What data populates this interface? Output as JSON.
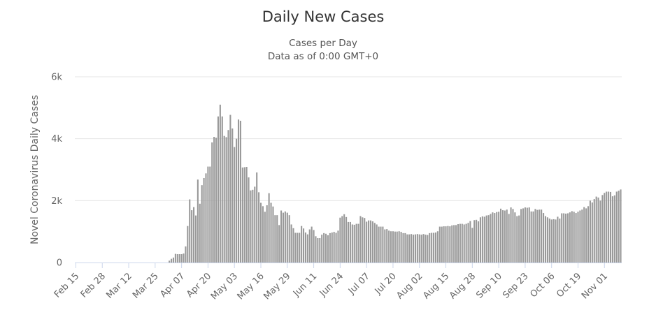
{
  "chart_data": {
    "type": "bar",
    "title": "Daily New Cases",
    "subtitle_lines": [
      "Cases per Day",
      "Data as of 0:00 GMT+0"
    ],
    "xlabel": "",
    "ylabel": "Novel Coronavirus Daily Cases",
    "ylim": [
      0,
      6000
    ],
    "y_ticks": [
      0,
      2000,
      4000,
      6000
    ],
    "y_tick_labels": [
      "0",
      "2k",
      "4k",
      "6k"
    ],
    "x_tick_labels": [
      "Feb 15",
      "Feb 28",
      "Mar 12",
      "Mar 25",
      "Apr 07",
      "Apr 20",
      "May 03",
      "May 16",
      "May 29",
      "Jun 11",
      "Jun 24",
      "Jul 07",
      "Jul 20",
      "Aug 02",
      "Aug 15",
      "Aug 28",
      "Sep 10",
      "Sep 23",
      "Oct 06",
      "Oct 19",
      "Nov 01"
    ],
    "x_tick_every_days": 13,
    "grid": true,
    "legend": "none",
    "bar_color": "#999999",
    "values": [
      0,
      0,
      0,
      0,
      0,
      0,
      0,
      0,
      0,
      0,
      0,
      0,
      0,
      0,
      0,
      0,
      0,
      0,
      0,
      0,
      0,
      0,
      0,
      0,
      0,
      0,
      0,
      0,
      0,
      0,
      0,
      0,
      0,
      0,
      0,
      0,
      0,
      0,
      0,
      0,
      0,
      0,
      0,
      0,
      0,
      0,
      60,
      120,
      160,
      280,
      270,
      270,
      270,
      290,
      520,
      1180,
      2040,
      1690,
      1790,
      1520,
      2680,
      1900,
      2500,
      2730,
      2880,
      3100,
      3100,
      3880,
      4060,
      4030,
      4720,
      5100,
      4720,
      4090,
      4050,
      4280,
      4770,
      4330,
      3730,
      4000,
      4620,
      4580,
      3070,
      3080,
      3090,
      2750,
      2330,
      2350,
      2450,
      2910,
      2270,
      1930,
      1820,
      1640,
      1850,
      2240,
      1930,
      1810,
      1530,
      1530,
      1210,
      1680,
      1610,
      1650,
      1610,
      1530,
      1230,
      1110,
      960,
      960,
      960,
      1180,
      1100,
      970,
      910,
      1070,
      1160,
      1050,
      850,
      790,
      790,
      900,
      950,
      930,
      880,
      950,
      970,
      990,
      960,
      1030,
      1450,
      1500,
      1560,
      1470,
      1310,
      1310,
      1230,
      1220,
      1250,
      1250,
      1500,
      1460,
      1440,
      1320,
      1360,
      1360,
      1330,
      1280,
      1230,
      1160,
      1160,
      1160,
      1070,
      1080,
      1030,
      1010,
      1010,
      1000,
      1000,
      1010,
      990,
      950,
      950,
      910,
      910,
      920,
      900,
      910,
      920,
      910,
      900,
      920,
      900,
      890,
      950,
      960,
      960,
      970,
      1010,
      1160,
      1160,
      1170,
      1170,
      1180,
      1170,
      1200,
      1210,
      1210,
      1240,
      1250,
      1250,
      1230,
      1250,
      1280,
      1340,
      1120,
      1370,
      1380,
      1330,
      1460,
      1490,
      1480,
      1520,
      1530,
      1570,
      1620,
      1600,
      1630,
      1640,
      1740,
      1690,
      1680,
      1710,
      1570,
      1780,
      1730,
      1620,
      1500,
      1520,
      1730,
      1750,
      1780,
      1770,
      1780,
      1650,
      1650,
      1730,
      1700,
      1710,
      1710,
      1600,
      1500,
      1460,
      1420,
      1390,
      1400,
      1390,
      1480,
      1420,
      1590,
      1590,
      1580,
      1590,
      1620,
      1660,
      1640,
      1600,
      1640,
      1680,
      1710,
      1790,
      1750,
      1820,
      2000,
      1940,
      2050,
      2130,
      2100,
      2000,
      2180,
      2250,
      2290,
      2290,
      2280,
      2140,
      2170,
      2290,
      2320,
      2360
    ]
  }
}
